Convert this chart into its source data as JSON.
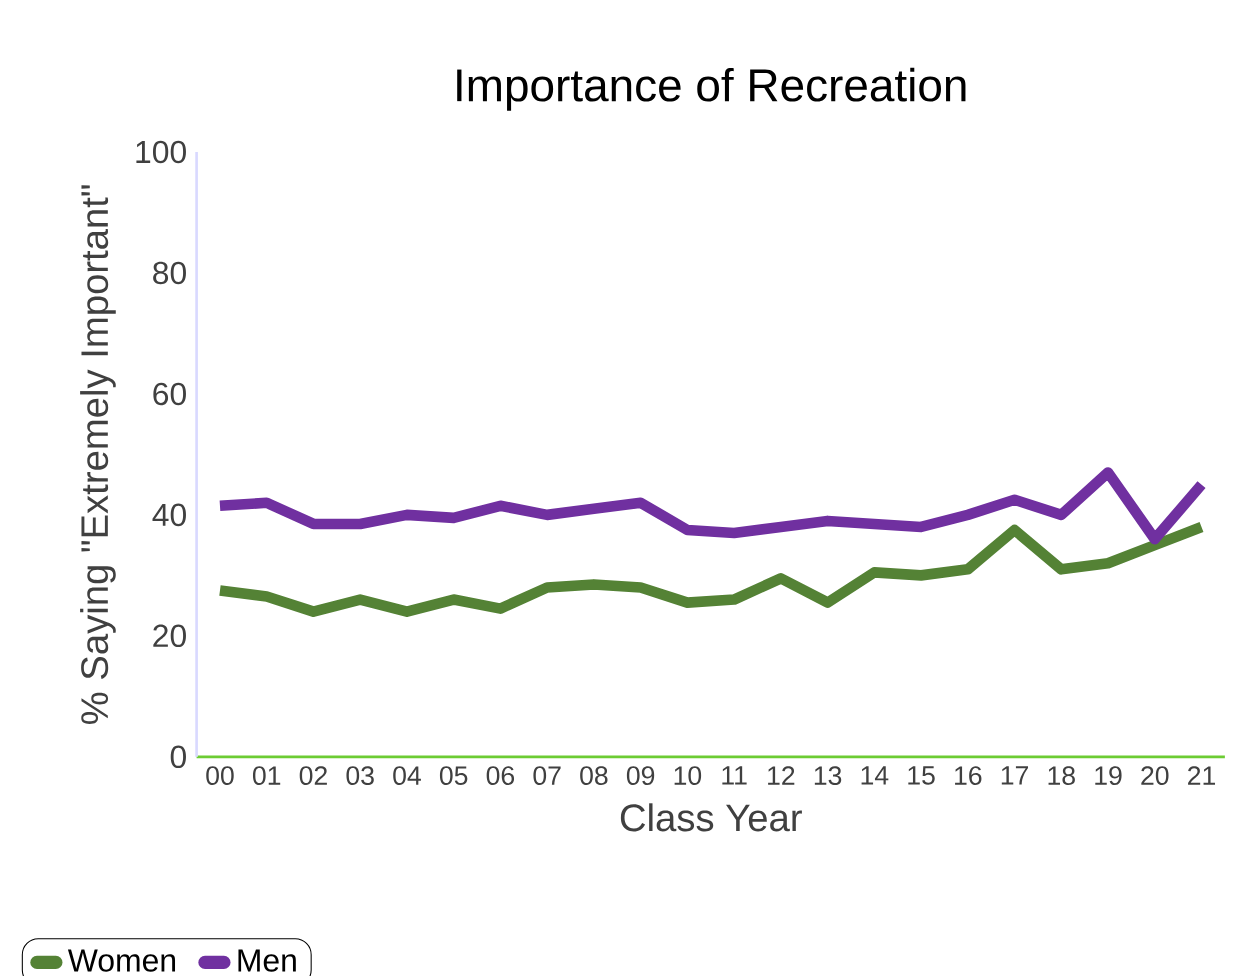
{
  "chart_data": {
    "type": "line",
    "title": "Importance of Recreation",
    "xlabel": "Class Year",
    "ylabel": "% Saying \"Extremely Important\"",
    "categories": [
      "00",
      "01",
      "02",
      "03",
      "04",
      "05",
      "06",
      "07",
      "08",
      "09",
      "10",
      "11",
      "12",
      "13",
      "14",
      "15",
      "16",
      "17",
      "18",
      "19",
      "20",
      "21"
    ],
    "series": [
      {
        "name": "Women",
        "color": "#548235",
        "values": [
          27.5,
          26.5,
          24,
          26,
          24,
          26,
          24.5,
          28,
          28.5,
          28,
          25.5,
          26,
          29.5,
          25.5,
          30.5,
          30,
          31,
          37.5,
          31,
          32,
          35,
          38
        ]
      },
      {
        "name": "Men",
        "color": "#7030a0",
        "values": [
          41.5,
          42,
          38.5,
          38.5,
          40,
          39.5,
          41.5,
          40,
          41,
          42,
          37.5,
          37,
          38,
          39,
          38.5,
          38,
          40,
          42.5,
          40,
          47,
          36,
          45
        ]
      }
    ],
    "ylim": [
      0,
      100
    ],
    "yticks": [
      0,
      20,
      40,
      60,
      80,
      100
    ],
    "grid": false,
    "legend": "bottom left",
    "marker": "none",
    "line_style": "solid"
  }
}
